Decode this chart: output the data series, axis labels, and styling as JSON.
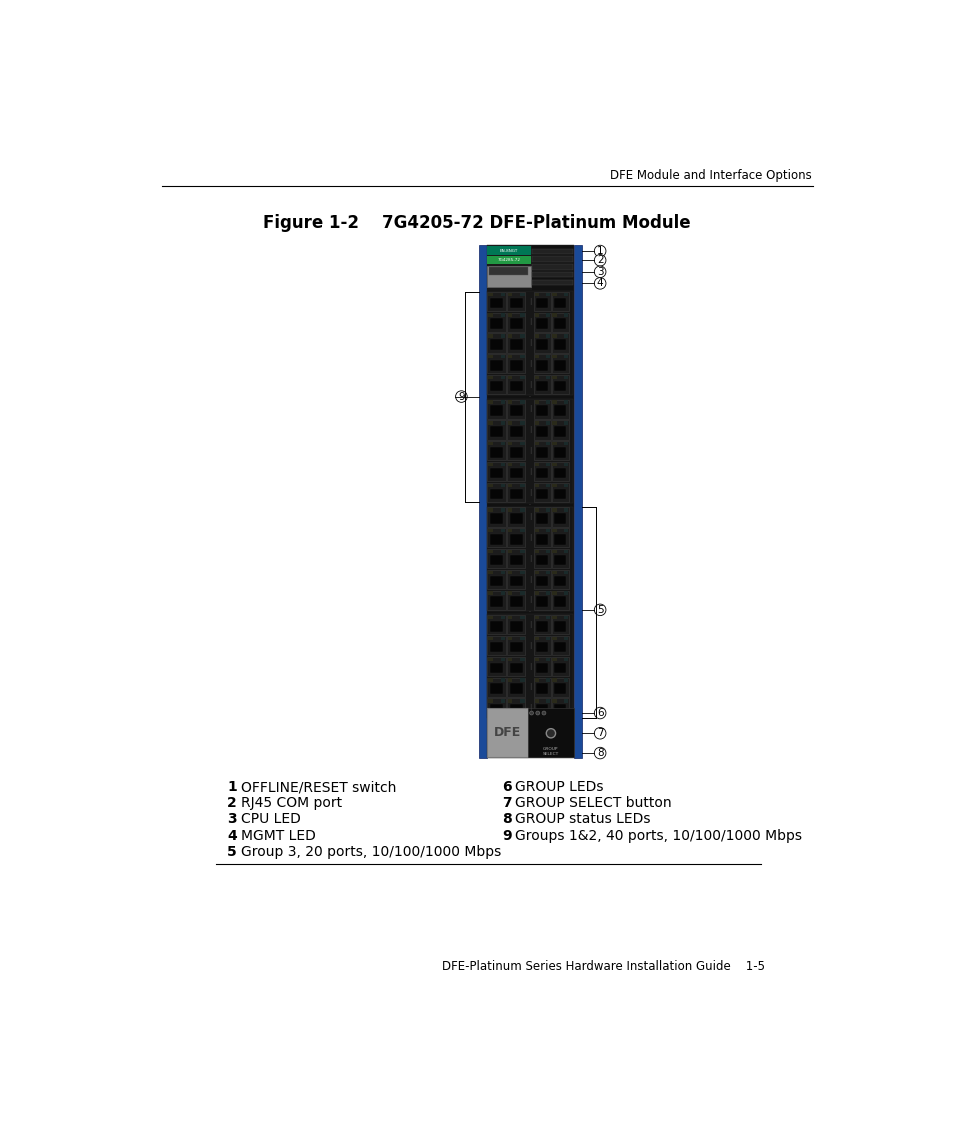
{
  "title": "Figure 1-2    7G4205-72 DFE-Platinum Module",
  "header_right": "DFE Module and Interface Options",
  "footer": "DFE-Platinum Series Hardware Installation Guide    1-5",
  "legend_items": [
    {
      "num": "1",
      "text": "OFFLINE/RESET switch"
    },
    {
      "num": "2",
      "text": "RJ45 COM port"
    },
    {
      "num": "3",
      "text": "CPU LED"
    },
    {
      "num": "4",
      "text": "MGMT LED"
    },
    {
      "num": "5",
      "text": "Group 3, 20 ports, 10/100/1000 Mbps"
    },
    {
      "num": "6",
      "text": "GROUP LEDs"
    },
    {
      "num": "7",
      "text": "GROUP SELECT button"
    },
    {
      "num": "8",
      "text": "GROUP status LEDs"
    },
    {
      "num": "9",
      "text": "Groups 1&2, 40 ports, 10/100/1000 Mbps"
    }
  ],
  "bg_color": "#ffffff",
  "module_bg": "#111111",
  "rail_color": "#1a4a99",
  "port_bg": "#1a1a1a",
  "port_hole": "#000000",
  "dfe_bg": "#999999",
  "grp_bg": "#111111"
}
